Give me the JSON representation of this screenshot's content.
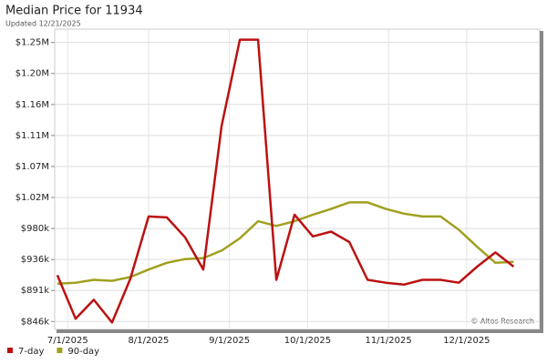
{
  "chart_data": {
    "type": "line",
    "title": "Median Price for 11934",
    "subtitle": "Updated 12/21/2025",
    "annotation": "© Altos Research",
    "x": [
      "2025-06-27",
      "2025-07-04",
      "2025-07-11",
      "2025-07-18",
      "2025-07-25",
      "2025-08-01",
      "2025-08-08",
      "2025-08-15",
      "2025-08-22",
      "2025-08-29",
      "2025-09-05",
      "2025-09-12",
      "2025-09-19",
      "2025-09-26",
      "2025-10-03",
      "2025-10-10",
      "2025-10-17",
      "2025-10-24",
      "2025-10-31",
      "2025-11-07",
      "2025-11-14",
      "2025-11-21",
      "2025-11-28",
      "2025-12-05",
      "2025-12-12",
      "2025-12-19"
    ],
    "series": [
      {
        "name": "7-day",
        "color": "#bb1111",
        "values": [
          913000,
          850500,
          877700,
          845000,
          907600,
          997400,
          996100,
          967500,
          921200,
          1128000,
          1251800,
          1251800,
          906300,
          1000100,
          968800,
          975700,
          960700,
          906300,
          902200,
          899500,
          906300,
          906300,
          902200,
          925300,
          945700,
          925300
        ]
      },
      {
        "name": "90-day",
        "color": "#a0a020",
        "values": [
          900800,
          902200,
          906300,
          904900,
          910300,
          921200,
          930800,
          936200,
          937600,
          948400,
          966100,
          990600,
          983800,
          990600,
          1000100,
          1008300,
          1017800,
          1017800,
          1008300,
          1001500,
          997400,
          997400,
          978400,
          953900,
          930800,
          932100
        ]
      }
    ],
    "xlim": [
      "2025-06-26",
      "2025-12-29"
    ],
    "xticks": [
      {
        "value": "2025-07-01",
        "label": "7/1/2025"
      },
      {
        "value": "2025-08-01",
        "label": "8/1/2025"
      },
      {
        "value": "2025-09-01",
        "label": "9/1/2025"
      },
      {
        "value": "2025-10-01",
        "label": "10/1/2025"
      },
      {
        "value": "2025-11-01",
        "label": "11/1/2025"
      },
      {
        "value": "2025-12-01",
        "label": "12/1/2025"
      }
    ],
    "ylim": [
      835000,
      1267000
    ],
    "yticks": [
      {
        "value": 846400,
        "label": "$846k"
      },
      {
        "value": 891000,
        "label": "$891k"
      },
      {
        "value": 935600,
        "label": "$936k"
      },
      {
        "value": 980200,
        "label": "$980k"
      },
      {
        "value": 1024800,
        "label": "$1.02M"
      },
      {
        "value": 1069400,
        "label": "$1.07M"
      },
      {
        "value": 1114000,
        "label": "$1.11M"
      },
      {
        "value": 1158600,
        "label": "$1.16M"
      },
      {
        "value": 1203200,
        "label": "$1.20M"
      },
      {
        "value": 1247800,
        "label": "$1.25M"
      }
    ],
    "grid": true
  }
}
